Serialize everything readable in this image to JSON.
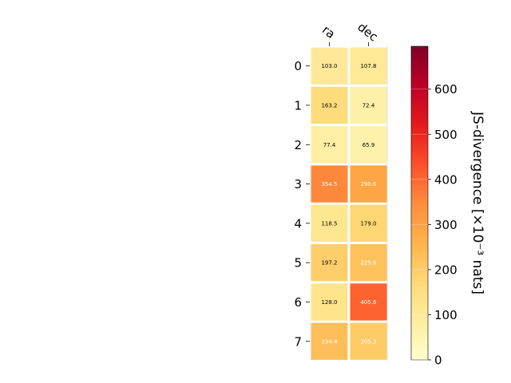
{
  "chart_data": {
    "type": "heatmap",
    "columns": [
      "ra",
      "dec"
    ],
    "rows": [
      "0",
      "1",
      "2",
      "3",
      "4",
      "5",
      "6",
      "7"
    ],
    "values": [
      [
        103.0,
        107.8
      ],
      [
        163.2,
        72.4
      ],
      [
        77.4,
        65.9
      ],
      [
        354.5,
        290.6
      ],
      [
        118.5,
        179.0
      ],
      [
        197.2,
        225.6
      ],
      [
        128.0,
        405.6
      ],
      [
        234.4,
        205.3
      ]
    ],
    "cell_labels": [
      [
        "103.0",
        "107.8"
      ],
      [
        "163.2",
        "72.4"
      ],
      [
        "77.4",
        "65.9"
      ],
      [
        "354.5",
        "290.6"
      ],
      [
        "118.5",
        "179.0"
      ],
      [
        "197.2",
        "225.6"
      ],
      [
        "128.0",
        "405.6"
      ],
      [
        "234.4",
        "205.3"
      ]
    ],
    "colorbar": {
      "label": "JS-divergence [×10⁻³ nats]",
      "range": [
        0,
        695
      ],
      "ticks": [
        0,
        100,
        200,
        300,
        400,
        500,
        600
      ],
      "tick_labels": [
        "0",
        "100",
        "200",
        "300",
        "400",
        "500",
        "600"
      ],
      "colormap": "YlOrRd",
      "colormap_stops": [
        "#ffffcc",
        "#ffeda0",
        "#fed976",
        "#feb24c",
        "#fd8d3c",
        "#fc4e2a",
        "#e31a1c",
        "#bd0026",
        "#800026"
      ]
    },
    "label_color_threshold": 200,
    "label_color_dark": "#000000",
    "label_color_light": "#ffffff",
    "cell_separator_color": "#ffffff"
  }
}
